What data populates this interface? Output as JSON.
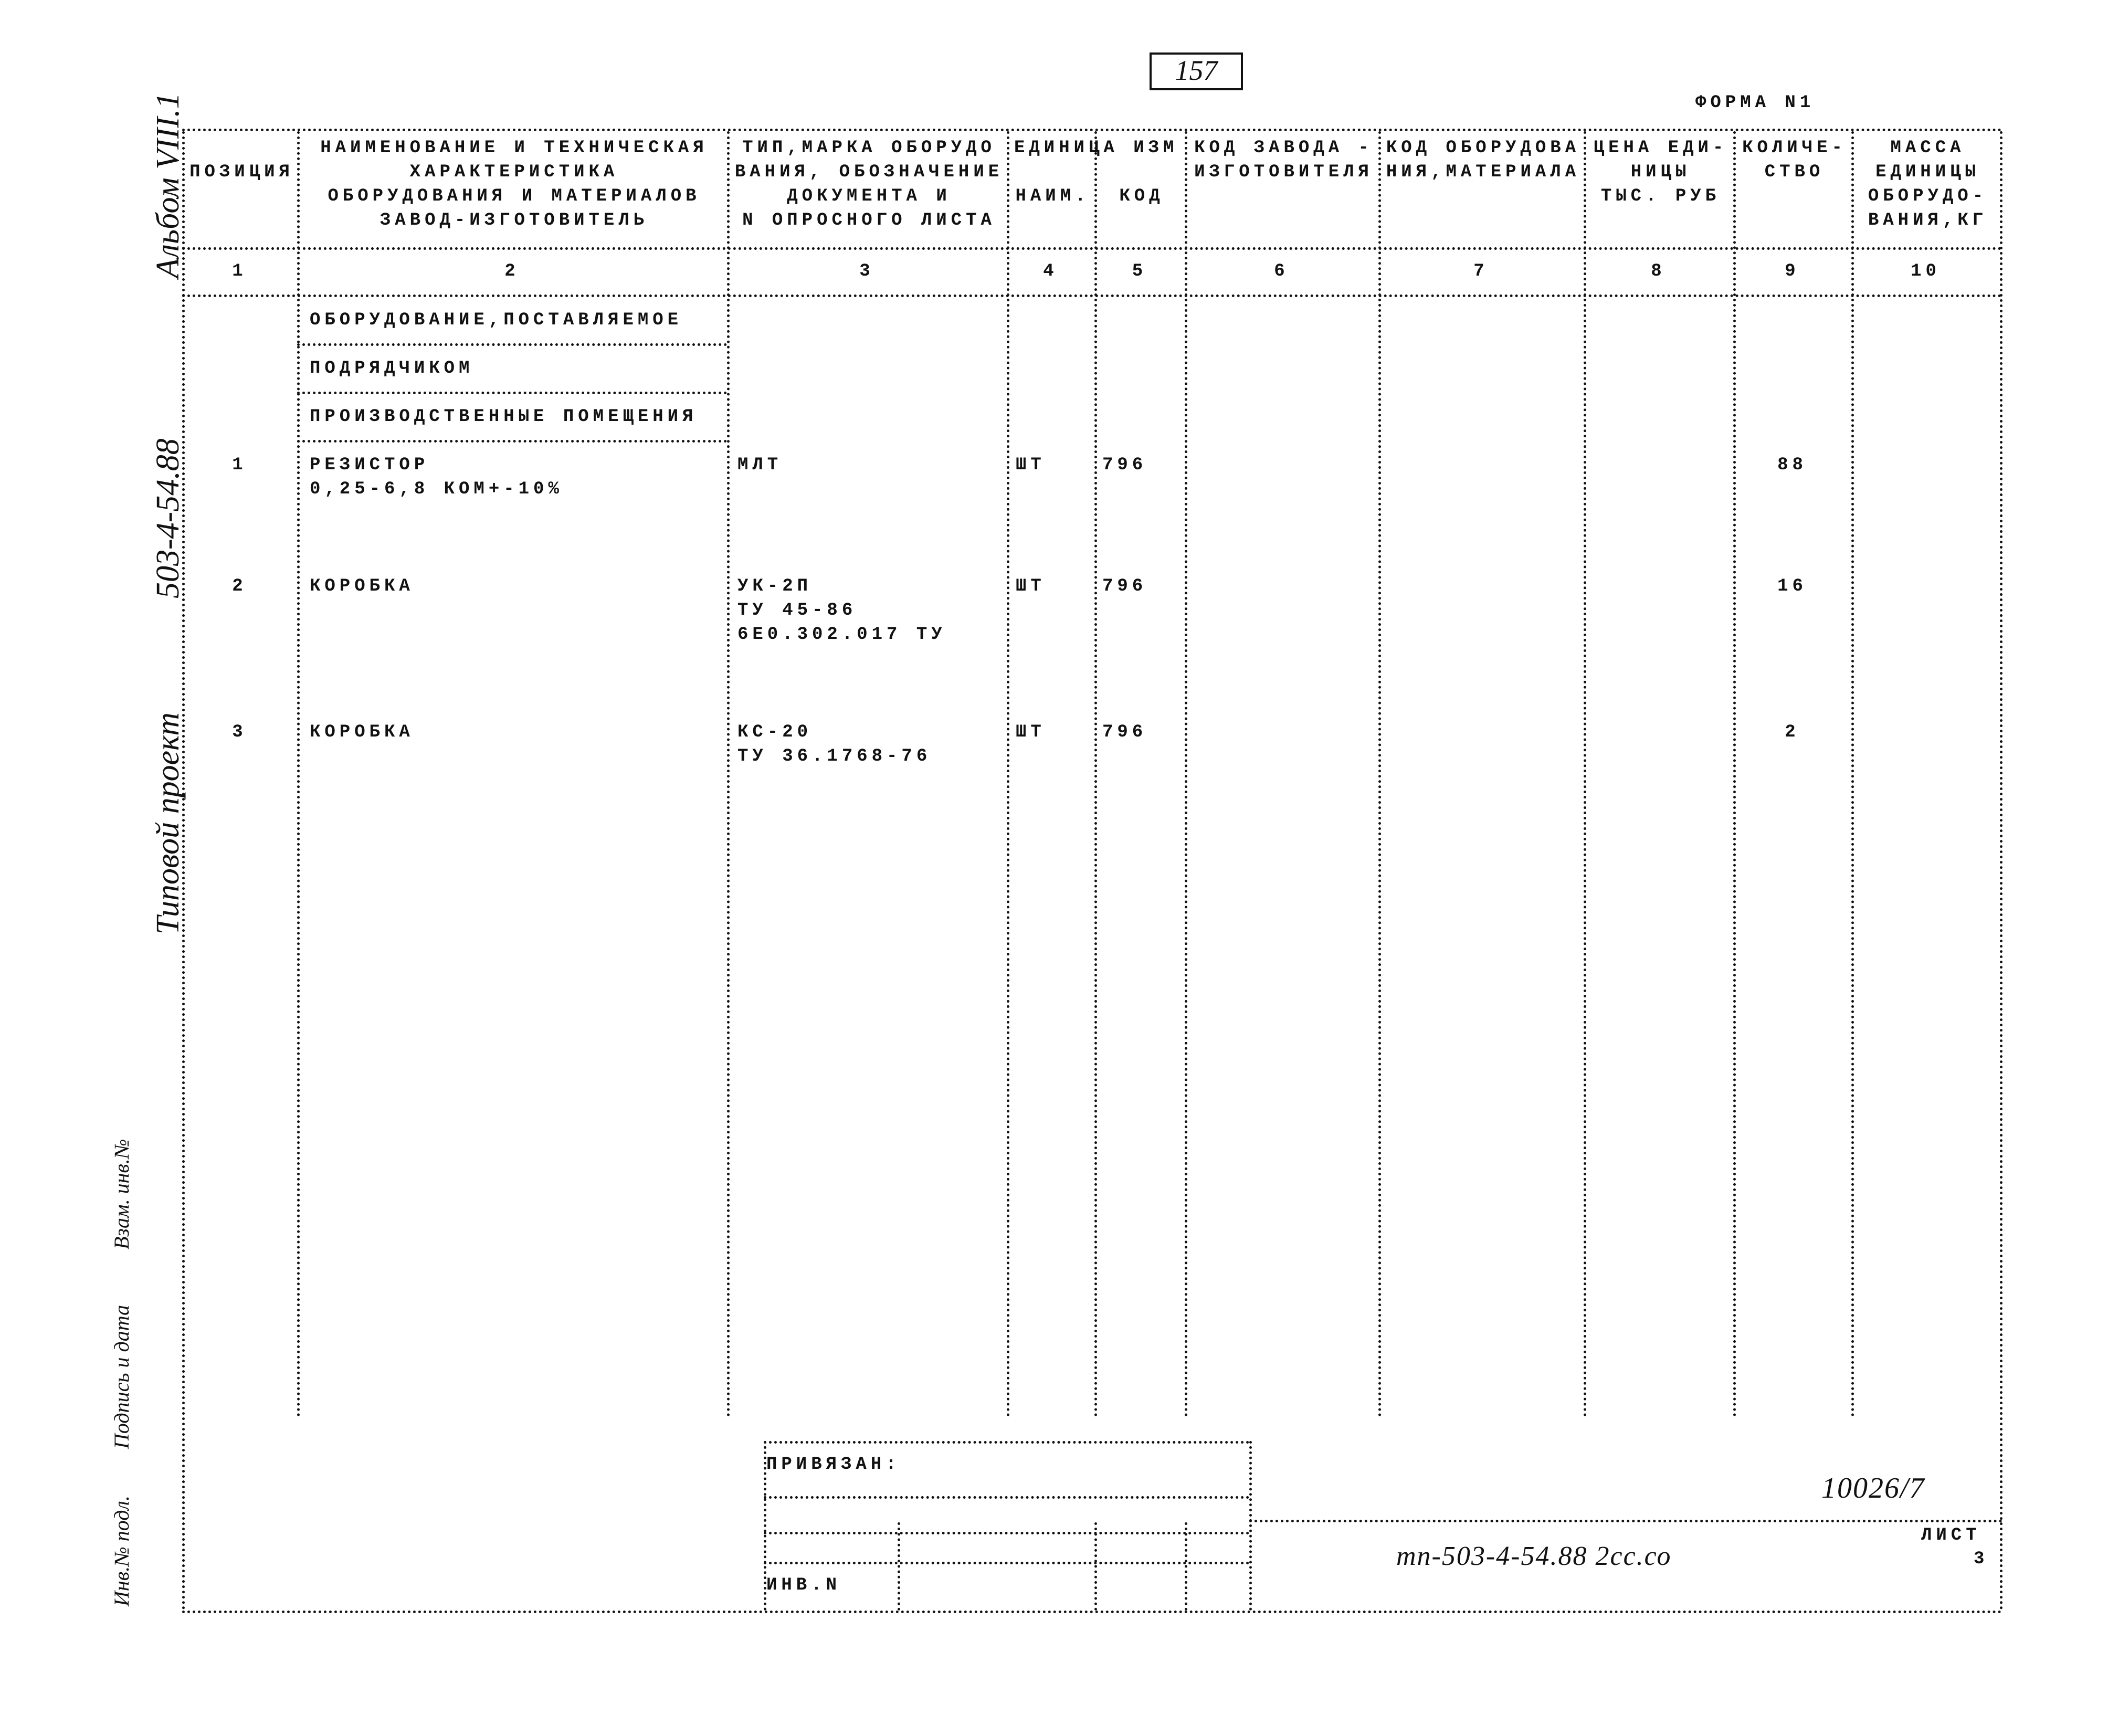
{
  "page_number": "157",
  "form_label": "ФОРМА N1",
  "side_labels": {
    "album": "Альбом VIII.1",
    "project_code": "503-4-54.88",
    "project_type": "Типовой проект",
    "inv_orig": "Инв.№ подл.",
    "sign_date": "Подпись и дата",
    "replace_inv": "Взам. инв.№"
  },
  "header": {
    "columns": [
      {
        "lines": [
          "",
          "ПОЗИЦИЯ",
          "",
          ""
        ],
        "num": "1"
      },
      {
        "lines": [
          "НАИМЕНОВАНИЕ И ТЕХНИЧЕСКАЯ",
          "ХАРАКТЕРИСТИКА",
          "ОБОРУДОВАНИЯ И МАТЕРИАЛОВ",
          "ЗАВОД-ИЗГОТОВИТЕЛЬ"
        ],
        "num": "2"
      },
      {
        "lines": [
          "ТИП,МАРКА ОБОРУДО",
          "ВАНИЯ, ОБОЗНАЧЕНИЕ",
          "ДОКУМЕНТА И",
          "N ОПРОСНОГО ЛИСТА"
        ],
        "num": "3"
      },
      {
        "lines": [
          "ЕДИНИЦА ИЗМ",
          "",
          "НАИМ.",
          ""
        ],
        "num": "4"
      },
      {
        "lines": [
          "",
          "",
          "КОД",
          ""
        ],
        "num": "5"
      },
      {
        "lines": [
          "КОД ЗАВОДА -",
          "ИЗГОТОВИТЕЛЯ",
          "",
          ""
        ],
        "num": "6"
      },
      {
        "lines": [
          "КОД ОБОРУДОВА",
          "НИЯ,МАТЕРИАЛА",
          "",
          ""
        ],
        "num": "7"
      },
      {
        "lines": [
          "ЦЕНА ЕДИ-",
          "НИЦЫ",
          "ТЫС. РУБ",
          ""
        ],
        "num": "8"
      },
      {
        "lines": [
          "КОЛИЧЕ-",
          "СТВО",
          "",
          ""
        ],
        "num": "9"
      },
      {
        "lines": [
          "МАССА",
          "ЕДИНИЦЫ",
          "ОБОРУДО-",
          "ВАНИЯ,КГ"
        ],
        "num": "10"
      }
    ]
  },
  "sections": [
    "ОБОРУДОВАНИЕ,ПОСТАВЛЯЕМОЕ",
    "ПОДРЯДЧИКОМ",
    "ПРОИЗВОДСТВЕННЫЕ ПОМЕЩЕНИЯ"
  ],
  "items": [
    {
      "pos": "1",
      "name": [
        "РЕЗИСТОР",
        "0,25-6,8 КОМ+-10%"
      ],
      "type": [
        "МЛТ"
      ],
      "unit": "ШТ",
      "code": "796",
      "qty": "88"
    },
    {
      "pos": "2",
      "name": [
        "КОРОБКА"
      ],
      "type": [
        "УК-2П",
        "ТУ 45-86",
        "6Е0.302.017 ТУ"
      ],
      "unit": "ШТ",
      "code": "796",
      "qty": "16"
    },
    {
      "pos": "3",
      "name": [
        "КОРОБКА"
      ],
      "type": [
        "КС-20",
        "ТУ 36.1768-76"
      ],
      "unit": "ШТ",
      "code": "796",
      "qty": "2"
    }
  ],
  "stamp": {
    "bound": "ПРИВЯЗАН:",
    "inv": "ИНВ.N",
    "doc_number": "10026/7",
    "sheet_label": "ЛИСТ",
    "sheet": "3",
    "doc_code": "тп-503-4-54.88 2сс.со"
  }
}
